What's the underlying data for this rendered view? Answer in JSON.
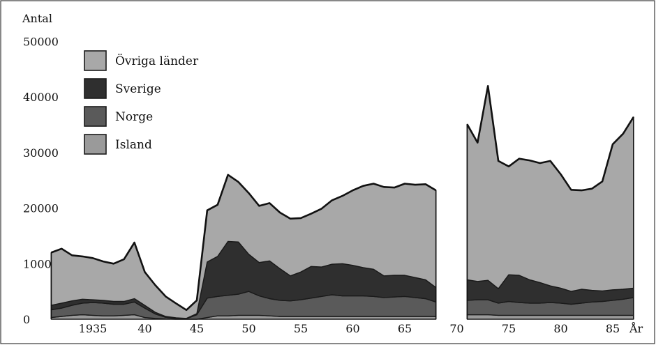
{
  "chart_data": {
    "type": "area",
    "stacked": true,
    "ylabel": "Antal",
    "xlabel": "År",
    "ylim": [
      0,
      50000
    ],
    "yticks": [
      0,
      10000,
      20000,
      30000,
      40000,
      50000
    ],
    "ytick_labels": [
      "0",
      "10000",
      "20000",
      "30000",
      "40000",
      "50000"
    ],
    "xticks": [
      1935,
      1940,
      1945,
      1950,
      1955,
      1960,
      1965,
      1970,
      1975,
      1980,
      1985
    ],
    "xtick_labels": [
      "1935",
      "40",
      "45",
      "50",
      "55",
      "60",
      "65",
      "70",
      "75",
      "80",
      "85"
    ],
    "legend_position": "top-left",
    "gap_years": [
      1968,
      1971
    ],
    "series": [
      {
        "name": "Island",
        "color": "#9a9a9a",
        "segments": [
          {
            "x": [
              1931,
              1932,
              1933,
              1934,
              1935,
              1936,
              1937,
              1938,
              1939,
              1940,
              1941,
              1942,
              1943,
              1944,
              1945,
              1946,
              1947,
              1948,
              1949,
              1950,
              1951,
              1952,
              1953,
              1954,
              1955,
              1956,
              1957,
              1958,
              1959,
              1960,
              1961,
              1962,
              1963,
              1964,
              1965,
              1966,
              1967,
              1968
            ],
            "values": [
              300,
              500,
              700,
              800,
              700,
              600,
              600,
              700,
              800,
              300,
              150,
              50,
              0,
              0,
              0,
              300,
              600,
              600,
              700,
              700,
              700,
              600,
              500,
              500,
              500,
              500,
              500,
              500,
              500,
              500,
              500,
              500,
              500,
              500,
              500,
              500,
              500,
              500
            ]
          },
          {
            "x": [
              1971,
              1972,
              1973,
              1974,
              1975,
              1976,
              1977,
              1978,
              1979,
              1980,
              1981,
              1982,
              1983,
              1984,
              1985,
              1986,
              1987
            ],
            "values": [
              800,
              800,
              800,
              700,
              700,
              700,
              700,
              700,
              700,
              700,
              700,
              700,
              700,
              700,
              700,
              700,
              700
            ]
          }
        ]
      },
      {
        "name": "Norge",
        "color": "#5a5a5a",
        "segments": [
          {
            "x": [
              1931,
              1932,
              1933,
              1934,
              1935,
              1936,
              1937,
              1938,
              1939,
              1940,
              1941,
              1942,
              1943,
              1944,
              1945,
              1946,
              1947,
              1948,
              1949,
              1950,
              1951,
              1952,
              1953,
              1954,
              1955,
              1956,
              1957,
              1958,
              1959,
              1960,
              1961,
              1962,
              1963,
              1964,
              1965,
              1966,
              1967,
              1968
            ],
            "values": [
              1400,
              1500,
              1800,
              2100,
              2300,
              2300,
              2100,
              2000,
              2300,
              1700,
              800,
              300,
              150,
              100,
              800,
              3500,
              3500,
              3700,
              3800,
              4300,
              3500,
              3100,
              2900,
              2800,
              3000,
              3300,
              3600,
              3900,
              3700,
              3700,
              3700,
              3600,
              3400,
              3500,
              3600,
              3400,
              3200,
              2600
            ]
          },
          {
            "x": [
              1971,
              1972,
              1973,
              1974,
              1975,
              1976,
              1977,
              1978,
              1979,
              1980,
              1981,
              1982,
              1983,
              1984,
              1985,
              1986,
              1987
            ],
            "values": [
              2600,
              2700,
              2700,
              2200,
              2500,
              2300,
              2200,
              2200,
              2300,
              2200,
              2000,
              2200,
              2400,
              2500,
              2700,
              2900,
              3200
            ]
          }
        ]
      },
      {
        "name": "Sverige",
        "color": "#2f2f2f",
        "segments": [
          {
            "x": [
              1931,
              1932,
              1933,
              1934,
              1935,
              1936,
              1937,
              1938,
              1939,
              1940,
              1941,
              1942,
              1943,
              1944,
              1945,
              1946,
              1947,
              1948,
              1949,
              1950,
              1951,
              1952,
              1953,
              1954,
              1955,
              1956,
              1957,
              1958,
              1959,
              1960,
              1961,
              1962,
              1963,
              1964,
              1965,
              1966,
              1967,
              1968
            ],
            "values": [
              800,
              900,
              800,
              700,
              500,
              500,
              500,
              500,
              600,
              500,
              300,
              150,
              100,
              50,
              200,
              6500,
              7200,
              9700,
              9400,
              6700,
              6000,
              6800,
              5700,
              4500,
              5000,
              5700,
              5300,
              5500,
              5800,
              5500,
              5100,
              4900,
              3900,
              3900,
              3800,
              3600,
              3400,
              2600
            ]
          },
          {
            "x": [
              1971,
              1972,
              1973,
              1974,
              1975,
              1976,
              1977,
              1978,
              1979,
              1980,
              1981,
              1982,
              1983,
              1984,
              1985,
              1986,
              1987
            ],
            "values": [
              3700,
              3300,
              3500,
              2600,
              4800,
              4900,
              4200,
              3700,
              3000,
              2700,
              2300,
              2500,
              2100,
              1900,
              1900,
              1800,
              1700
            ]
          }
        ]
      },
      {
        "name": "Övriga länder",
        "color": "#a8a8a8",
        "segments": [
          {
            "x": [
              1931,
              1932,
              1933,
              1934,
              1935,
              1936,
              1937,
              1938,
              1939,
              1940,
              1941,
              1942,
              1943,
              1944,
              1945,
              1946,
              1947,
              1948,
              1949,
              1950,
              1951,
              1952,
              1953,
              1954,
              1955,
              1956,
              1957,
              1958,
              1959,
              1960,
              1961,
              1962,
              1963,
              1964,
              1965,
              1966,
              1967,
              1968
            ],
            "values": [
              9500,
              9800,
              8200,
              7700,
              7500,
              7000,
              6800,
              7600,
              10100,
              6000,
              4900,
              3600,
              2600,
              1500,
              2400,
              9300,
              9300,
              12000,
              10800,
              11000,
              10200,
              10400,
              10100,
              10300,
              9700,
              9500,
              10500,
              11500,
              12200,
              13500,
              14700,
              15400,
              16000,
              15800,
              16500,
              16700,
              17200,
              17500
            ]
          },
          {
            "x": [
              1971,
              1972,
              1973,
              1974,
              1975,
              1976,
              1977,
              1978,
              1979,
              1980,
              1981,
              1982,
              1983,
              1984,
              1985,
              1986,
              1987
            ],
            "values": [
              28000,
              25000,
              35000,
              23000,
              19500,
              21000,
              21500,
              21500,
              22500,
              20500,
              18300,
              17800,
              18300,
              19700,
              26200,
              28000,
              30800
            ]
          }
        ]
      }
    ]
  }
}
